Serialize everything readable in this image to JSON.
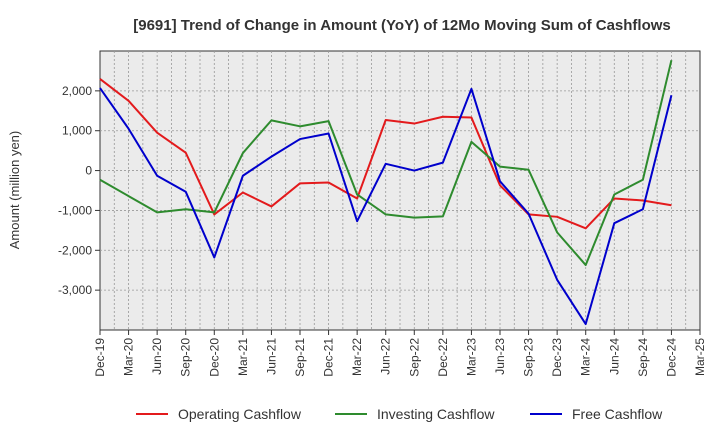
{
  "chart_data": {
    "type": "line",
    "title": "[9691]  Trend of Change in Amount (YoY) of 12Mo Moving Sum of Cashflows",
    "xlabel": "",
    "ylabel": "Amount (million yen)",
    "ylim": [
      -4000,
      3000
    ],
    "yticks": [
      2000,
      1000,
      0,
      -1000,
      -2000,
      -3000
    ],
    "ytick_labels": [
      "2,000",
      "1,000",
      "0",
      "-1,000",
      "-2,000",
      "-3,000"
    ],
    "categories": [
      "Dec-19",
      "Mar-20",
      "Jun-20",
      "Sep-20",
      "Dec-20",
      "Mar-21",
      "Jun-21",
      "Sep-21",
      "Dec-21",
      "Mar-22",
      "Jun-22",
      "Sep-22",
      "Dec-22",
      "Mar-23",
      "Jun-23",
      "Sep-23",
      "Dec-23",
      "Mar-24",
      "Jun-24",
      "Sep-24",
      "Dec-24",
      "Mar-25"
    ],
    "series": [
      {
        "name": "Operating Cashflow",
        "color": "#e31a1c",
        "values": [
          2300,
          1750,
          950,
          450,
          -1100,
          -550,
          -900,
          -320,
          -300,
          -700,
          1270,
          1180,
          1350,
          1330,
          -370,
          -1100,
          -1160,
          -1450,
          -700,
          -750,
          -870,
          null
        ]
      },
      {
        "name": "Investing Cashflow",
        "color": "#2e8b2e",
        "values": [
          -230,
          -640,
          -1050,
          -970,
          -1050,
          440,
          1260,
          1110,
          1240,
          -600,
          -1100,
          -1180,
          -1150,
          720,
          100,
          20,
          -1550,
          -2370,
          -600,
          -230,
          2770,
          null
        ]
      },
      {
        "name": "Free Cashflow",
        "color": "#0000cc",
        "values": [
          2070,
          1050,
          -130,
          -530,
          -2180,
          -130,
          350,
          790,
          930,
          -1270,
          170,
          0,
          200,
          2050,
          -270,
          -1080,
          -2740,
          -3850,
          -1320,
          -970,
          1890,
          null
        ]
      }
    ],
    "legend_position": "bottom",
    "grid": true
  }
}
